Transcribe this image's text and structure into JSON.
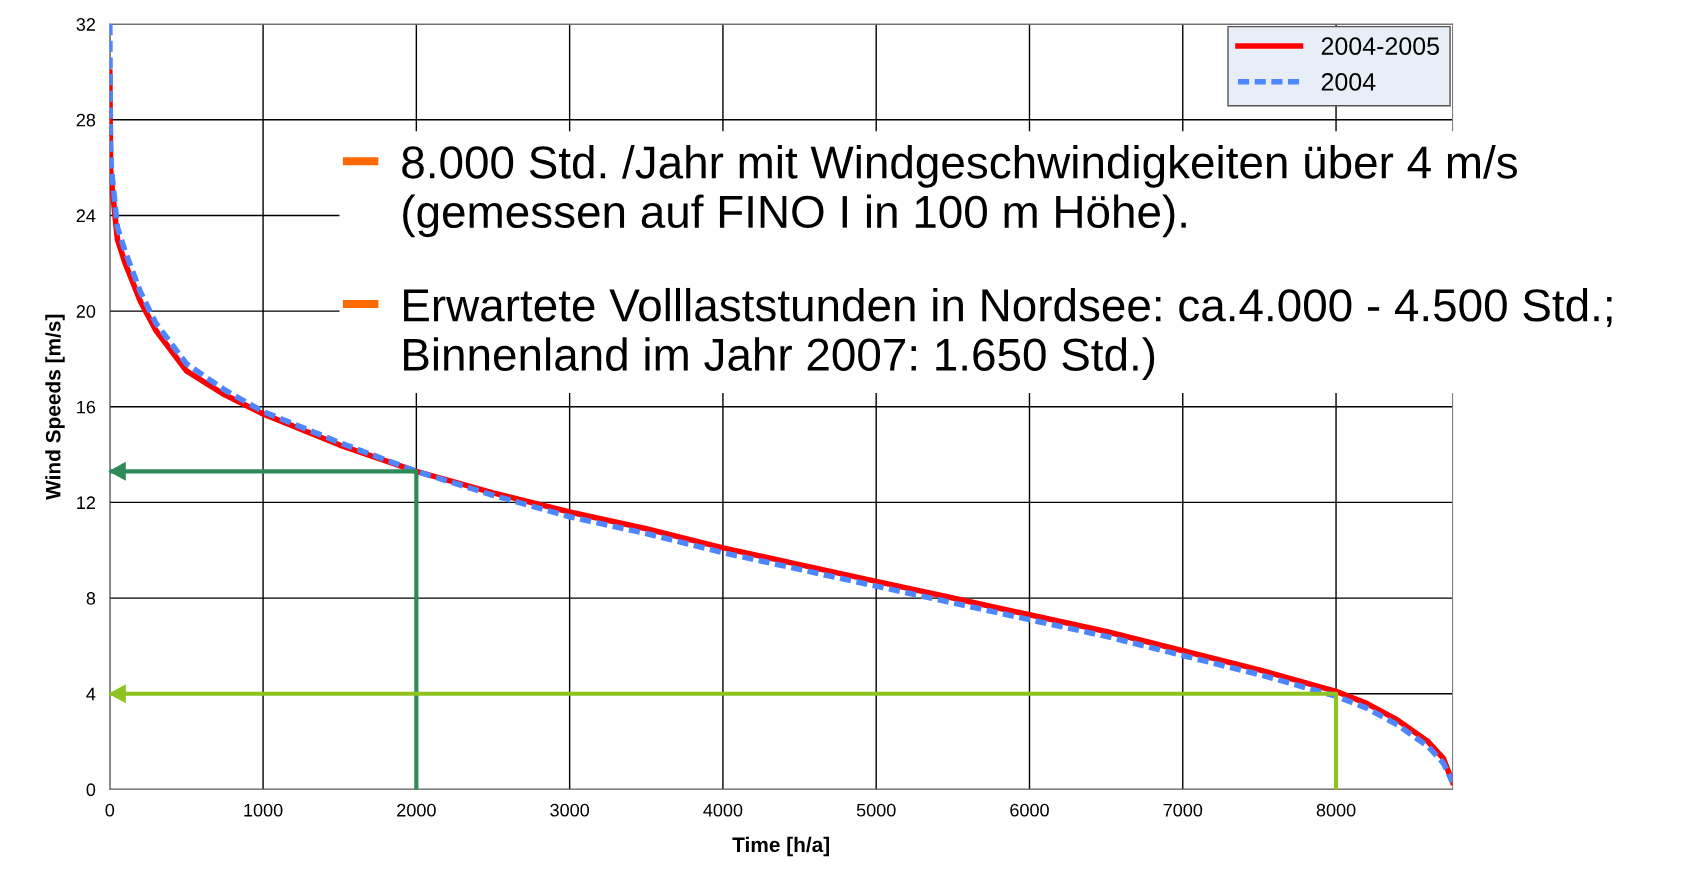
{
  "chart_data": {
    "type": "line",
    "xlabel": "Time [h/a]",
    "ylabel": "Wind Speeds [m/s]",
    "xlim": [
      0,
      8760
    ],
    "ylim": [
      0,
      32
    ],
    "xticks": [
      0,
      1000,
      2000,
      3000,
      4000,
      5000,
      6000,
      7000,
      8000
    ],
    "yticks": [
      0,
      4,
      8,
      12,
      16,
      20,
      24,
      28,
      32
    ],
    "grid": true,
    "legend": "top right",
    "line_style": "solid",
    "marker": "none",
    "series": [
      {
        "name": "2004-2005",
        "color": "#ff0000",
        "x": [
          0,
          5,
          10,
          50,
          100,
          200,
          300,
          500,
          750,
          1000,
          1500,
          2000,
          2500,
          3000,
          3500,
          4000,
          4500,
          5000,
          5500,
          6000,
          6500,
          7000,
          7500,
          8000,
          8200,
          8400,
          8600,
          8700,
          8760
        ],
        "values": [
          30,
          26,
          25.5,
          23,
          22,
          20.4,
          19.2,
          17.5,
          16.5,
          15.7,
          14.4,
          13.3,
          12.4,
          11.6,
          10.9,
          10.1,
          9.4,
          8.7,
          8.0,
          7.3,
          6.6,
          5.8,
          5.0,
          4.1,
          3.6,
          2.9,
          2.0,
          1.3,
          0.3
        ]
      },
      {
        "name": "2004",
        "color": "#4d86ff",
        "line_style": "dashed",
        "x": [
          0,
          5,
          10,
          50,
          100,
          200,
          300,
          500,
          750,
          1000,
          1500,
          2000,
          2500,
          3000,
          3500,
          4000,
          4500,
          5000,
          5500,
          6000,
          6500,
          7000,
          7500,
          8000,
          8200,
          8400,
          8600,
          8700,
          8760
        ],
        "values": [
          32,
          27,
          26,
          23.5,
          22.5,
          20.8,
          19.5,
          17.8,
          16.7,
          15.8,
          14.5,
          13.3,
          12.3,
          11.4,
          10.7,
          9.9,
          9.2,
          8.5,
          7.8,
          7.1,
          6.4,
          5.6,
          4.8,
          3.9,
          3.4,
          2.7,
          1.8,
          1.1,
          0.3
        ]
      },
      {
        "type": "line",
        "color": "#2e8b57",
        "x": [
          2000,
          2000,
          0
        ],
        "values": [
          0,
          13.3,
          13.3
        ]
      },
      {
        "type": "line",
        "color": "#8fc31f",
        "x": [
          8000,
          8000,
          0
        ],
        "values": [
          0,
          4,
          4
        ]
      }
    ],
    "annotations": [
      "8.000 Std. /Jahr mit Windgeschwindigkeiten über 4 m/s\n(gemessen auf FINO I in 100 m Höhe).",
      "Erwartete Volllaststunden in Nordsee: ca.4.000 - 4.500 Std.;\nBinnenland im Jahr 2007: 1.650 Std.)"
    ]
  }
}
